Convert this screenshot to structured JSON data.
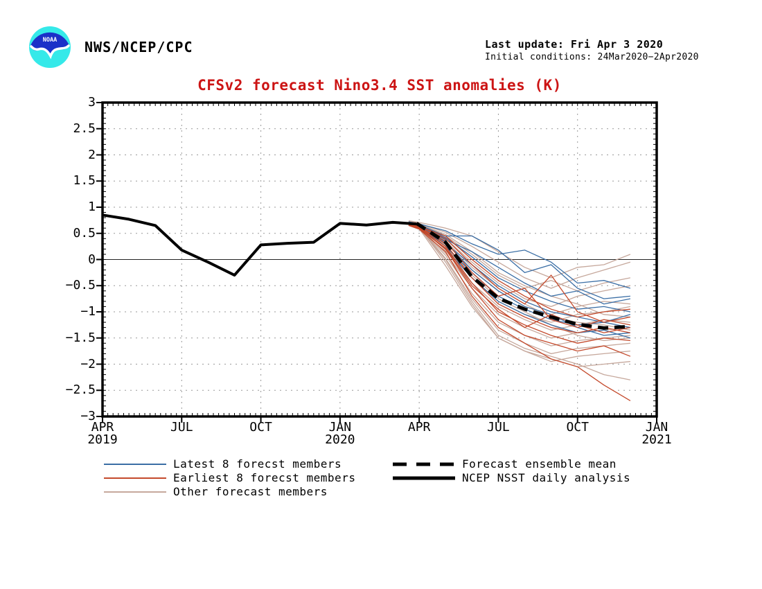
{
  "header": {
    "agency": "NWS/NCEP/CPC",
    "last_update": "Last update: Fri Apr 3 2020",
    "initial_conditions": "Initial conditions: 24Mar2020−2Apr2020",
    "logo": {
      "name": "noaa-logo",
      "text": "NOAA",
      "blue": "#1b30c8",
      "cyan": "#35e9e9"
    }
  },
  "chart_data": {
    "type": "line",
    "title": "CFSv2 forecast Nino3.4 SST anomalies (K)",
    "title_color": "#cc1414",
    "ylabel": "",
    "xlabel": "",
    "ylim": [
      -3,
      3
    ],
    "x_months_span": 21,
    "grid": "dotted",
    "y_ticks": [
      {
        "v": 3,
        "label": "3"
      },
      {
        "v": 2.5,
        "label": "2.5"
      },
      {
        "v": 2,
        "label": "2"
      },
      {
        "v": 1.5,
        "label": "1.5"
      },
      {
        "v": 1,
        "label": "1"
      },
      {
        "v": 0.5,
        "label": "0.5"
      },
      {
        "v": 0,
        "label": "0"
      },
      {
        "v": -0.5,
        "label": "−0.5"
      },
      {
        "v": -1,
        "label": "−1"
      },
      {
        "v": -1.5,
        "label": "−1.5"
      },
      {
        "v": -2,
        "label": "−2"
      },
      {
        "v": -2.5,
        "label": "−2.5"
      },
      {
        "v": -3,
        "label": "−3"
      }
    ],
    "x_ticks": [
      {
        "m": 0,
        "label": "APR",
        "year": "2019"
      },
      {
        "m": 3,
        "label": "JUL"
      },
      {
        "m": 6,
        "label": "OCT"
      },
      {
        "m": 9,
        "label": "JAN",
        "year": "2020"
      },
      {
        "m": 12,
        "label": "APR"
      },
      {
        "m": 15,
        "label": "JUL"
      },
      {
        "m": 18,
        "label": "OCT"
      },
      {
        "m": 21,
        "label": "JAN",
        "year": "2021"
      }
    ],
    "observed": {
      "name": "NCEP NSST daily analysis",
      "color": "#000000",
      "x": [
        0,
        1,
        2,
        3,
        4,
        5,
        6,
        7,
        8,
        9,
        10,
        11,
        11.9
      ],
      "values": [
        0.85,
        0.77,
        0.65,
        0.18,
        -0.05,
        -0.3,
        0.28,
        0.31,
        0.33,
        0.69,
        0.66,
        0.71,
        0.68
      ]
    },
    "ensemble_mean": {
      "name": "Forecast ensemble mean",
      "color": "#000000",
      "x": [
        11.9,
        12,
        13,
        14,
        15,
        16,
        17,
        18,
        19,
        20
      ],
      "values": [
        0.69,
        0.66,
        0.33,
        -0.33,
        -0.74,
        -0.95,
        -1.1,
        -1.24,
        -1.31,
        -1.28
      ]
    },
    "members": {
      "x": [
        11.6,
        12,
        13,
        14,
        15,
        16,
        17,
        18,
        19,
        20
      ],
      "latest": {
        "name": "Latest 8 forecst members",
        "color": "#3a6ea5",
        "series": [
          [
            0.72,
            0.68,
            0.55,
            0.3,
            0.1,
            0.18,
            -0.05,
            -0.45,
            -0.4,
            -0.55
          ],
          [
            0.71,
            0.66,
            0.45,
            0.45,
            0.18,
            -0.25,
            -0.1,
            -0.55,
            -0.75,
            -0.7
          ],
          [
            0.7,
            0.64,
            0.38,
            0.15,
            -0.15,
            -0.45,
            -0.7,
            -0.6,
            -0.85,
            -0.75
          ],
          [
            0.72,
            0.67,
            0.42,
            0.05,
            -0.35,
            -0.6,
            -0.8,
            -0.95,
            -0.9,
            -1.0
          ],
          [
            0.69,
            0.63,
            0.3,
            -0.1,
            -0.5,
            -0.8,
            -1.0,
            -1.1,
            -1.2,
            -1.05
          ],
          [
            0.7,
            0.65,
            0.25,
            -0.25,
            -0.7,
            -0.95,
            -1.15,
            -1.25,
            -1.2,
            -1.3
          ],
          [
            0.71,
            0.64,
            0.33,
            -0.2,
            -0.6,
            -0.9,
            -1.05,
            -1.3,
            -1.45,
            -1.4
          ],
          [
            0.68,
            0.62,
            0.2,
            -0.35,
            -0.8,
            -1.05,
            -1.25,
            -1.4,
            -1.35,
            -1.5
          ]
        ]
      },
      "earliest": {
        "name": "Earliest 8 forecst members",
        "color": "#c4492b",
        "series": [
          [
            0.65,
            0.58,
            0.15,
            -0.7,
            -1.3,
            -1.6,
            -1.9,
            -2.05,
            -2.4,
            -2.7
          ],
          [
            0.66,
            0.6,
            0.2,
            -0.55,
            -1.15,
            -1.45,
            -1.6,
            -1.75,
            -1.65,
            -1.85
          ],
          [
            0.67,
            0.61,
            0.25,
            -0.45,
            -1.0,
            -1.25,
            -1.45,
            -1.6,
            -1.5,
            -1.55
          ],
          [
            0.68,
            0.62,
            0.3,
            -0.35,
            -0.85,
            -1.1,
            -1.3,
            -1.4,
            -1.3,
            -1.4
          ],
          [
            0.66,
            0.59,
            0.22,
            -0.5,
            -0.95,
            -1.3,
            -1.05,
            -1.25,
            -1.4,
            -1.3
          ],
          [
            0.67,
            0.62,
            0.35,
            -0.25,
            -0.7,
            -0.55,
            -1.15,
            -1.3,
            -1.15,
            -1.25
          ],
          [
            0.69,
            0.64,
            0.4,
            -0.1,
            -0.55,
            -0.85,
            -0.3,
            -1.0,
            -1.2,
            -1.1
          ],
          [
            0.68,
            0.63,
            0.45,
            0.0,
            -0.4,
            -0.7,
            -0.95,
            -1.1,
            -1.0,
            -0.95
          ]
        ]
      },
      "other": {
        "name": "Other forecast members",
        "color": "#c6a89c",
        "series": [
          [
            0.74,
            0.71,
            0.6,
            0.45,
            0.15,
            -0.15,
            -0.35,
            -0.15,
            -0.1,
            0.1
          ],
          [
            0.73,
            0.69,
            0.52,
            0.25,
            -0.05,
            -0.35,
            -0.55,
            -0.35,
            -0.2,
            -0.05
          ],
          [
            0.72,
            0.67,
            0.45,
            0.1,
            -0.3,
            -0.55,
            -0.4,
            -0.6,
            -0.45,
            -0.35
          ],
          [
            0.7,
            0.66,
            0.4,
            -0.05,
            -0.45,
            -0.75,
            -0.9,
            -0.7,
            -0.6,
            -0.5
          ],
          [
            0.71,
            0.65,
            0.32,
            -0.2,
            -0.6,
            -0.9,
            -1.05,
            -0.9,
            -0.8,
            -0.85
          ],
          [
            0.69,
            0.63,
            0.25,
            -0.35,
            -0.8,
            -1.05,
            -1.2,
            -1.05,
            -1.0,
            -0.9
          ],
          [
            0.7,
            0.64,
            0.18,
            -0.45,
            -0.9,
            -1.15,
            -1.35,
            -1.25,
            -1.15,
            -1.2
          ],
          [
            0.68,
            0.62,
            0.12,
            -0.55,
            -1.05,
            -1.3,
            -1.5,
            -1.4,
            -1.35,
            -1.3
          ],
          [
            0.67,
            0.61,
            0.08,
            -0.65,
            -1.2,
            -1.45,
            -1.65,
            -1.55,
            -1.5,
            -1.45
          ],
          [
            0.69,
            0.62,
            0.02,
            -0.75,
            -1.35,
            -1.6,
            -1.8,
            -1.7,
            -1.65,
            -1.6
          ],
          [
            0.68,
            0.61,
            -0.05,
            -0.85,
            -1.5,
            -1.75,
            -1.95,
            -1.85,
            -1.8,
            -1.75
          ],
          [
            0.66,
            0.59,
            -0.12,
            -0.9,
            -1.5,
            -1.75,
            -1.9,
            -2.05,
            -2.0,
            -1.95
          ],
          [
            0.67,
            0.6,
            0.0,
            -0.8,
            -1.45,
            -1.7,
            -1.85,
            -2.0,
            -2.2,
            -2.3
          ],
          [
            0.72,
            0.68,
            0.48,
            0.15,
            -0.25,
            -0.5,
            -0.7,
            -0.85,
            -1.05,
            -1.1
          ],
          [
            0.71,
            0.66,
            0.36,
            -0.15,
            -0.55,
            -0.85,
            -1.1,
            -1.2,
            -1.25,
            -1.35
          ],
          [
            0.7,
            0.65,
            0.28,
            -0.3,
            -0.75,
            -1.0,
            -1.25,
            -1.45,
            -1.55,
            -1.5
          ]
        ]
      }
    },
    "colors": {
      "grid": "#979797",
      "zero_line": "#222222",
      "frame": "#000000"
    }
  },
  "legend": {
    "left": [
      {
        "label": "Latest 8 forecst members",
        "color": "#3a6ea5",
        "style": "solid",
        "weight": 2
      },
      {
        "label": "Earliest 8 forecst members",
        "color": "#c4492b",
        "style": "solid",
        "weight": 2
      },
      {
        "label": "Other forecast members",
        "color": "#c6a89c",
        "style": "solid",
        "weight": 2
      }
    ],
    "right": [
      {
        "label": "Forecast ensemble mean",
        "color": "#000000",
        "style": "dashed",
        "weight": 5
      },
      {
        "label": "NCEP NSST daily analysis",
        "color": "#000000",
        "style": "solid",
        "weight": 5
      }
    ]
  }
}
